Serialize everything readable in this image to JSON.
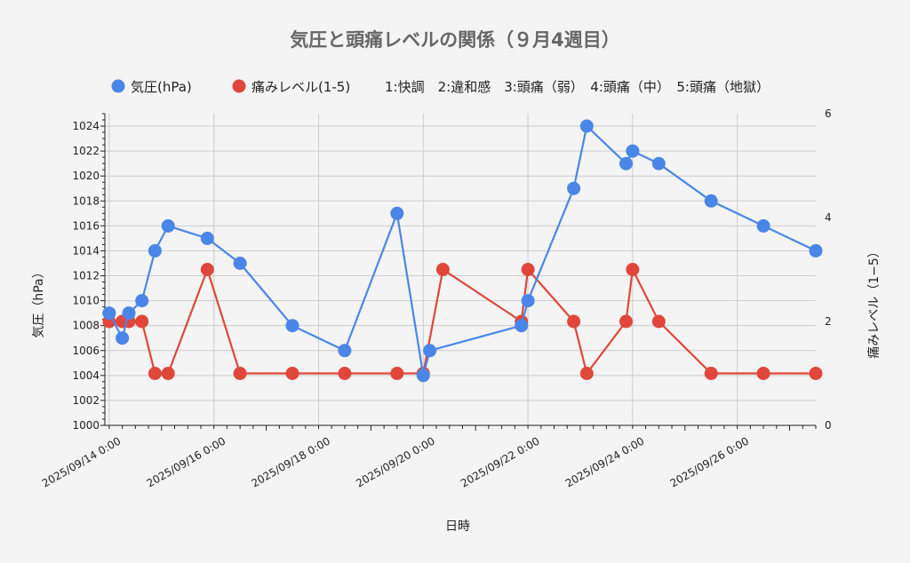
{
  "chart_data": {
    "type": "line",
    "title": "気圧と頭痛レベルの関係（９月4週目）",
    "xlabel": "日時",
    "ylabel_left": "気圧（hPa）",
    "ylabel_right": "痛みレベル（1−5）",
    "ylim_left": [
      1000,
      1025
    ],
    "ylim_right": [
      0,
      6
    ],
    "y_ticks_left": [
      1000,
      1002,
      1004,
      1006,
      1008,
      1010,
      1012,
      1014,
      1016,
      1018,
      1020,
      1022,
      1024
    ],
    "y_ticks_right": [
      0,
      2,
      4,
      6
    ],
    "xlim": [
      "2025-09-13 22:00",
      "2025-09-27 12:00"
    ],
    "x_ticks": [
      {
        "t": "2025-09-14 00:00",
        "label": "2025/09/14 0:00"
      },
      {
        "t": "2025-09-16 00:00",
        "label": "2025/09/16 0:00"
      },
      {
        "t": "2025-09-18 00:00",
        "label": "2025/09/18 0:00"
      },
      {
        "t": "2025-09-20 00:00",
        "label": "2025/09/20 0:00"
      },
      {
        "t": "2025-09-22 00:00",
        "label": "2025/09/22 0:00"
      },
      {
        "t": "2025-09-24 00:00",
        "label": "2025/09/24 0:00"
      },
      {
        "t": "2025-09-26 00:00",
        "label": "2025/09/26 0:00"
      }
    ],
    "grid": true,
    "legend_position": "top",
    "legend_note": "1:快調　2:違和感　3:頭痛（弱）　4:頭痛（中）　5:頭痛（地獄）",
    "series": [
      {
        "name": "気圧(hPa)",
        "axis": "left",
        "color": "#4a86e8",
        "points": [
          {
            "t": "2025-09-14 00:00",
            "y": 1009
          },
          {
            "t": "2025-09-14 06:00",
            "y": 1007
          },
          {
            "t": "2025-09-14 09:00",
            "y": 1009
          },
          {
            "t": "2025-09-14 15:00",
            "y": 1010
          },
          {
            "t": "2025-09-14 21:00",
            "y": 1014
          },
          {
            "t": "2025-09-15 03:00",
            "y": 1016
          },
          {
            "t": "2025-09-15 21:00",
            "y": 1015
          },
          {
            "t": "2025-09-16 12:00",
            "y": 1013
          },
          {
            "t": "2025-09-17 12:00",
            "y": 1008
          },
          {
            "t": "2025-09-18 12:00",
            "y": 1006
          },
          {
            "t": "2025-09-19 12:00",
            "y": 1017
          },
          {
            "t": "2025-09-20 00:00",
            "y": 1004
          },
          {
            "t": "2025-09-20 03:00",
            "y": 1006
          },
          {
            "t": "2025-09-21 21:00",
            "y": 1008
          },
          {
            "t": "2025-09-22 00:00",
            "y": 1010
          },
          {
            "t": "2025-09-22 21:00",
            "y": 1019
          },
          {
            "t": "2025-09-23 03:00",
            "y": 1024
          },
          {
            "t": "2025-09-23 21:00",
            "y": 1021
          },
          {
            "t": "2025-09-24 00:00",
            "y": 1022
          },
          {
            "t": "2025-09-24 12:00",
            "y": 1021
          },
          {
            "t": "2025-09-25 12:00",
            "y": 1018
          },
          {
            "t": "2025-09-26 12:00",
            "y": 1016
          },
          {
            "t": "2025-09-27 12:00",
            "y": 1014
          }
        ]
      },
      {
        "name": "痛みレベル(1-5)",
        "axis": "right",
        "color": "#e0463a",
        "points": [
          {
            "t": "2025-09-14 00:00",
            "y": 2
          },
          {
            "t": "2025-09-14 06:00",
            "y": 2
          },
          {
            "t": "2025-09-14 09:00",
            "y": 2
          },
          {
            "t": "2025-09-14 15:00",
            "y": 2
          },
          {
            "t": "2025-09-14 21:00",
            "y": 1
          },
          {
            "t": "2025-09-15 03:00",
            "y": 1
          },
          {
            "t": "2025-09-15 21:00",
            "y": 3
          },
          {
            "t": "2025-09-16 12:00",
            "y": 1
          },
          {
            "t": "2025-09-17 12:00",
            "y": 1
          },
          {
            "t": "2025-09-18 12:00",
            "y": 1
          },
          {
            "t": "2025-09-19 12:00",
            "y": 1
          },
          {
            "t": "2025-09-20 00:00",
            "y": 1
          },
          {
            "t": "2025-09-20 09:00",
            "y": 3
          },
          {
            "t": "2025-09-21 21:00",
            "y": 2
          },
          {
            "t": "2025-09-22 00:00",
            "y": 3
          },
          {
            "t": "2025-09-22 21:00",
            "y": 2
          },
          {
            "t": "2025-09-23 03:00",
            "y": 1
          },
          {
            "t": "2025-09-23 21:00",
            "y": 2
          },
          {
            "t": "2025-09-24 00:00",
            "y": 3
          },
          {
            "t": "2025-09-24 12:00",
            "y": 2
          },
          {
            "t": "2025-09-25 12:00",
            "y": 1
          },
          {
            "t": "2025-09-26 12:00",
            "y": 1
          },
          {
            "t": "2025-09-27 12:00",
            "y": 1
          }
        ]
      }
    ]
  }
}
